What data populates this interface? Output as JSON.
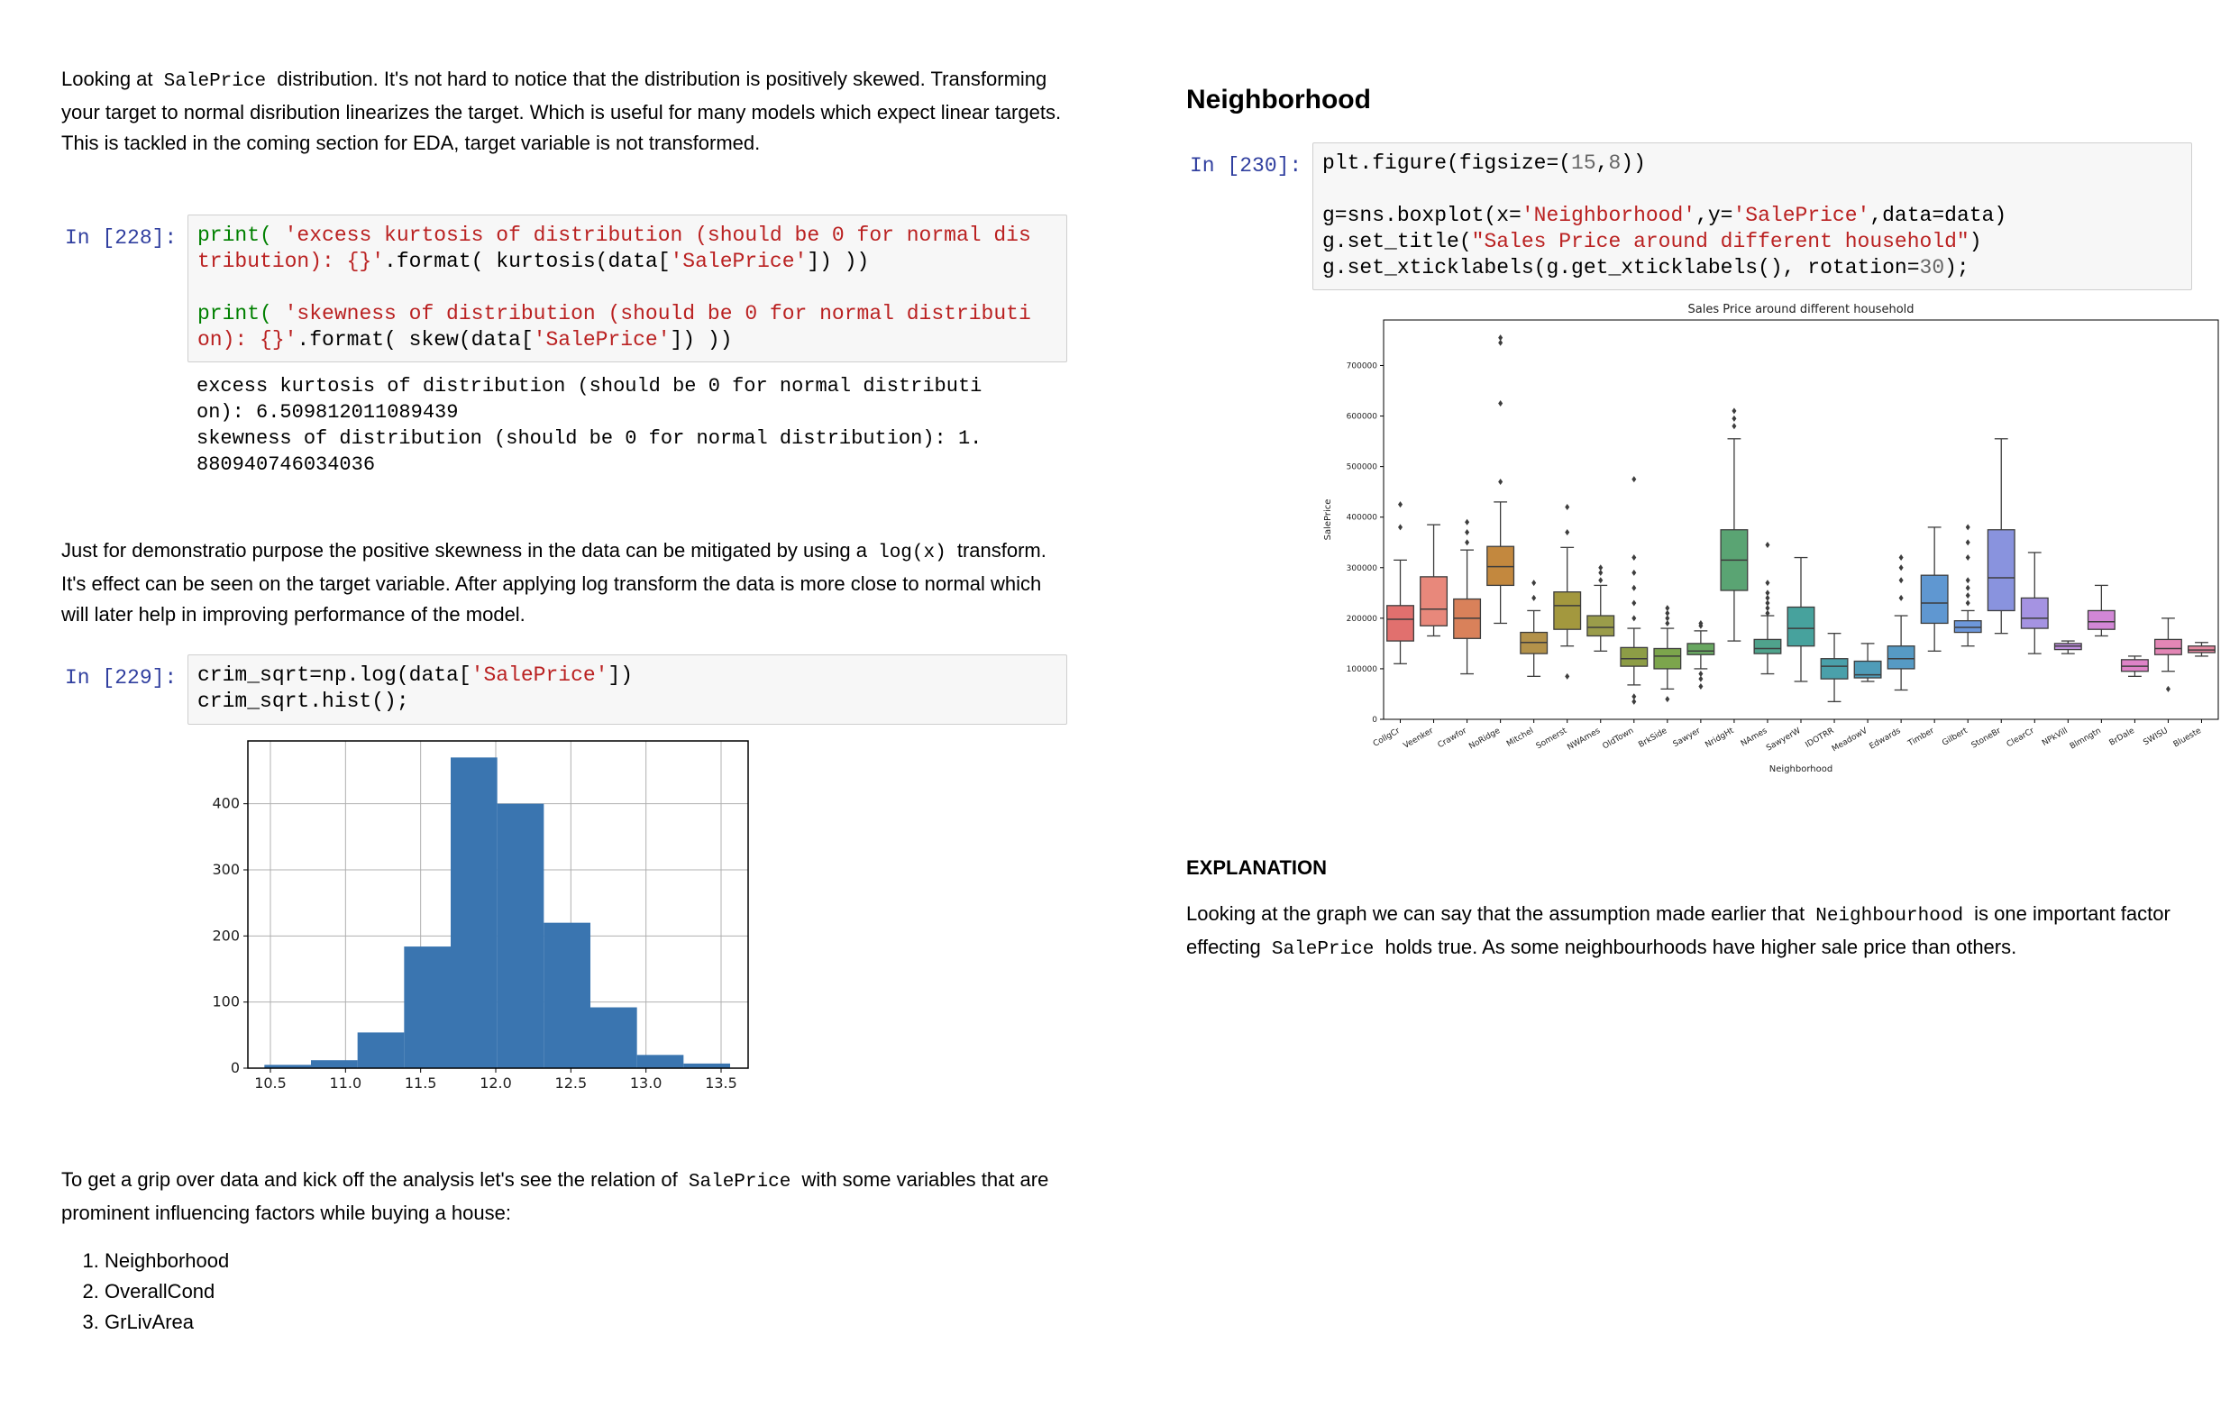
{
  "left": {
    "intro": {
      "t1": "Looking at",
      "code1": "SalePrice",
      "t2": "distribution. It's not hard to notice that the distribution is positively skewed. Transforming your target to normal disribution linearizes the target. Which is useful for many models which expect linear targets. This is tackled in the coming section for EDA, target variable is not transformed."
    },
    "cell228": {
      "prompt": "In [228]:",
      "l1a": "print(",
      "l1b": " 'excess kurtosis of distribution (should be 0 for normal dis",
      "l2a": "tribution): {}'",
      "l2b": ".format( kurtosis(data[",
      "l2c": "'SalePrice'",
      "l2d": "]) ))",
      "l3a": "print(",
      "l3b": " 'skewness of distribution (should be 0 for normal distributi",
      "l4a": "on): {}'",
      "l4b": ".format( skew(data[",
      "l4c": "'SalePrice'",
      "l4d": "]) ))",
      "out1": "excess kurtosis of distribution (should be 0 for normal distributi",
      "out2": "on): 6.509812011089439",
      "out3": "skewness of distribution (should be 0 for normal distribution): 1.",
      "out4": "880940746034036"
    },
    "log_text": {
      "t1": "Just for demonstratio purpose the positive skewness in the data can be mitigated by using a",
      "code1": "log(x)",
      "t2": "transform. It's effect can be seen on the target variable. After applying log transform the data is more close to normal which will later help in improving performance of the model."
    },
    "cell229": {
      "prompt": "In [229]:",
      "l1a": "crim_sqrt=np.log(data[",
      "l1b": "'SalePrice'",
      "l1c": "])",
      "l2": "crim_sqrt.hist();"
    },
    "grip": {
      "t1": "To get a grip over data and kick off the analysis let's see the relation of",
      "code1": "SalePrice",
      "t2": "with some variables that are prominent influencing factors while buying a house:"
    },
    "list": [
      "Neighborhood",
      "OverallCond",
      "GrLivArea"
    ]
  },
  "right": {
    "heading": "Neighborhood",
    "cell230": {
      "prompt": "In [230]:",
      "l1a": "plt.figure(figsize=(",
      "l1b": "15",
      "l1c": ",",
      "l1d": "8",
      "l1e": "))",
      "l2a": "g=sns.boxplot(x=",
      "l2b": "'Neighborhood'",
      "l2c": ",y=",
      "l2d": "'SalePrice'",
      "l2e": ",data=data)",
      "l3a": "g.set_title(",
      "l3b": "\"Sales Price around different household\"",
      "l3c": ")",
      "l4a": "g.set_xticklabels(g.get_xticklabels(), rotation=",
      "l4b": "30",
      "l4c": ");"
    },
    "explanation_title": "EXPLANATION",
    "explanation": {
      "t1": "Looking at the graph we can say that the assumption made earlier that",
      "code1": "Neighbourhood",
      "t2": "is one important factor effecting",
      "code2": "SalePrice",
      "t3": "holds true. As some neighbourhoods have higher sale price than others."
    }
  },
  "colors": {
    "prompt": "#303f9f",
    "keyword": "#008000",
    "string": "#ba2121",
    "number": "#666666",
    "hist_bar": "#3a75b0"
  },
  "chart_data": [
    {
      "type": "bar",
      "subtype": "histogram",
      "title": "",
      "xlabel": "",
      "ylabel": "",
      "bin_edges": [
        10.46,
        10.77,
        11.08,
        11.39,
        11.7,
        12.01,
        12.32,
        12.63,
        12.94,
        13.25,
        13.56
      ],
      "values": [
        5,
        12,
        54,
        184,
        470,
        400,
        220,
        92,
        20,
        7
      ],
      "xticks": [
        10.5,
        11.0,
        11.5,
        12.0,
        12.5,
        13.0,
        13.5
      ],
      "xtick_labels": [
        "10.5",
        "11.0",
        "11.5",
        "12.0",
        "12.5",
        "13.0",
        "13.5"
      ],
      "yticks": [
        0,
        100,
        200,
        300,
        400
      ],
      "ytick_labels": [
        "0",
        "100",
        "200",
        "300",
        "400"
      ],
      "xlim": [
        10.35,
        13.68
      ],
      "ylim": [
        0,
        495
      ],
      "grid": true
    },
    {
      "type": "box",
      "title": "Sales Price around different household",
      "xlabel": "Neighborhood",
      "ylabel": "SalePrice",
      "ylim": [
        0,
        790000
      ],
      "yticks": [
        0,
        100000,
        200000,
        300000,
        400000,
        500000,
        600000,
        700000
      ],
      "ytick_labels": [
        "0",
        "100000",
        "200000",
        "300000",
        "400000",
        "500000",
        "600000",
        "700000"
      ],
      "categories": [
        "CollgCr",
        "Veenker",
        "Crawfor",
        "NoRidge",
        "Mitchel",
        "Somerst",
        "NWAmes",
        "OldTown",
        "BrkSide",
        "Sawyer",
        "NridgHt",
        "NAmes",
        "SawyerW",
        "IDOTRR",
        "MeadowV",
        "Edwards",
        "Timber",
        "Gilbert",
        "StoneBr",
        "ClearCr",
        "NPkVill",
        "Blmngtn",
        "BrDale",
        "SWISU",
        "Blueste"
      ],
      "colors": [
        "#e1706e",
        "#e8887b",
        "#d9815a",
        "#c3883e",
        "#b3924a",
        "#a3983e",
        "#9a9c4a",
        "#8d9d46",
        "#7ca54c",
        "#68a761",
        "#5aa473",
        "#4fa38c",
        "#47a29d",
        "#4aa0aa",
        "#4f9cb8",
        "#569ac4",
        "#5f97d1",
        "#6d97da",
        "#8993de",
        "#a593e2",
        "#c18fe0",
        "#d287d6",
        "#de83c7",
        "#e386b5",
        "#e588a0"
      ],
      "boxes": [
        {
          "whislo": 110000,
          "q1": 155000,
          "med": 198000,
          "q3": 225000,
          "whishi": 315000,
          "fliers": [
            380000,
            425000
          ]
        },
        {
          "whislo": 165000,
          "q1": 185000,
          "med": 218000,
          "q3": 282000,
          "whishi": 385000,
          "fliers": []
        },
        {
          "whislo": 90000,
          "q1": 160000,
          "med": 200000,
          "q3": 238000,
          "whishi": 335000,
          "fliers": [
            350000,
            370000,
            390000
          ]
        },
        {
          "whislo": 190000,
          "q1": 265000,
          "med": 302000,
          "q3": 342000,
          "whishi": 430000,
          "fliers": [
            470000,
            625000,
            745000,
            755000
          ]
        },
        {
          "whislo": 85000,
          "q1": 130000,
          "med": 152000,
          "q3": 172000,
          "whishi": 215000,
          "fliers": [
            240000,
            270000
          ]
        },
        {
          "whislo": 145000,
          "q1": 178000,
          "med": 225000,
          "q3": 252000,
          "whishi": 340000,
          "fliers": [
            85000,
            370000,
            420000
          ]
        },
        {
          "whislo": 135000,
          "q1": 165000,
          "med": 182000,
          "q3": 205000,
          "whishi": 265000,
          "fliers": [
            275000,
            290000,
            300000
          ]
        },
        {
          "whislo": 68000,
          "q1": 105000,
          "med": 120000,
          "q3": 142000,
          "whishi": 180000,
          "fliers": [
            35000,
            45000,
            200000,
            230000,
            260000,
            290000,
            320000,
            475000
          ]
        },
        {
          "whislo": 60000,
          "q1": 100000,
          "med": 125000,
          "q3": 140000,
          "whishi": 180000,
          "fliers": [
            40000,
            190000,
            200000,
            210000,
            220000
          ]
        },
        {
          "whislo": 100000,
          "q1": 128000,
          "med": 135000,
          "q3": 150000,
          "whishi": 175000,
          "fliers": [
            65000,
            80000,
            90000,
            185000,
            190000
          ]
        },
        {
          "whislo": 155000,
          "q1": 255000,
          "med": 315000,
          "q3": 375000,
          "whishi": 555000,
          "fliers": [
            580000,
            595000,
            610000
          ]
        },
        {
          "whislo": 90000,
          "q1": 130000,
          "med": 140000,
          "q3": 158000,
          "whishi": 205000,
          "fliers": [
            210000,
            220000,
            230000,
            240000,
            250000,
            270000,
            345000
          ]
        },
        {
          "whislo": 75000,
          "q1": 145000,
          "med": 180000,
          "q3": 222000,
          "whishi": 320000,
          "fliers": []
        },
        {
          "whislo": 35000,
          "q1": 80000,
          "med": 105000,
          "q3": 120000,
          "whishi": 170000,
          "fliers": []
        },
        {
          "whislo": 75000,
          "q1": 82000,
          "med": 88000,
          "q3": 115000,
          "whishi": 150000,
          "fliers": []
        },
        {
          "whislo": 58000,
          "q1": 100000,
          "med": 120000,
          "q3": 145000,
          "whishi": 205000,
          "fliers": [
            240000,
            275000,
            300000,
            320000
          ]
        },
        {
          "whislo": 135000,
          "q1": 190000,
          "med": 230000,
          "q3": 285000,
          "whishi": 380000,
          "fliers": []
        },
        {
          "whislo": 145000,
          "q1": 172000,
          "med": 182000,
          "q3": 195000,
          "whishi": 215000,
          "fliers": [
            230000,
            245000,
            260000,
            275000,
            320000,
            350000,
            380000
          ]
        },
        {
          "whislo": 170000,
          "q1": 215000,
          "med": 280000,
          "q3": 375000,
          "whishi": 555000,
          "fliers": []
        },
        {
          "whislo": 130000,
          "q1": 180000,
          "med": 200000,
          "q3": 240000,
          "whishi": 330000,
          "fliers": []
        },
        {
          "whislo": 130000,
          "q1": 138000,
          "med": 145000,
          "q3": 150000,
          "whishi": 155000,
          "fliers": []
        },
        {
          "whislo": 165000,
          "q1": 178000,
          "med": 193000,
          "q3": 215000,
          "whishi": 265000,
          "fliers": []
        },
        {
          "whislo": 85000,
          "q1": 95000,
          "med": 105000,
          "q3": 118000,
          "whishi": 125000,
          "fliers": []
        },
        {
          "whislo": 95000,
          "q1": 128000,
          "med": 140000,
          "q3": 158000,
          "whishi": 200000,
          "fliers": [
            60000
          ]
        },
        {
          "whislo": 125000,
          "q1": 132000,
          "med": 137000,
          "q3": 145000,
          "whishi": 152000,
          "fliers": []
        }
      ]
    }
  ]
}
